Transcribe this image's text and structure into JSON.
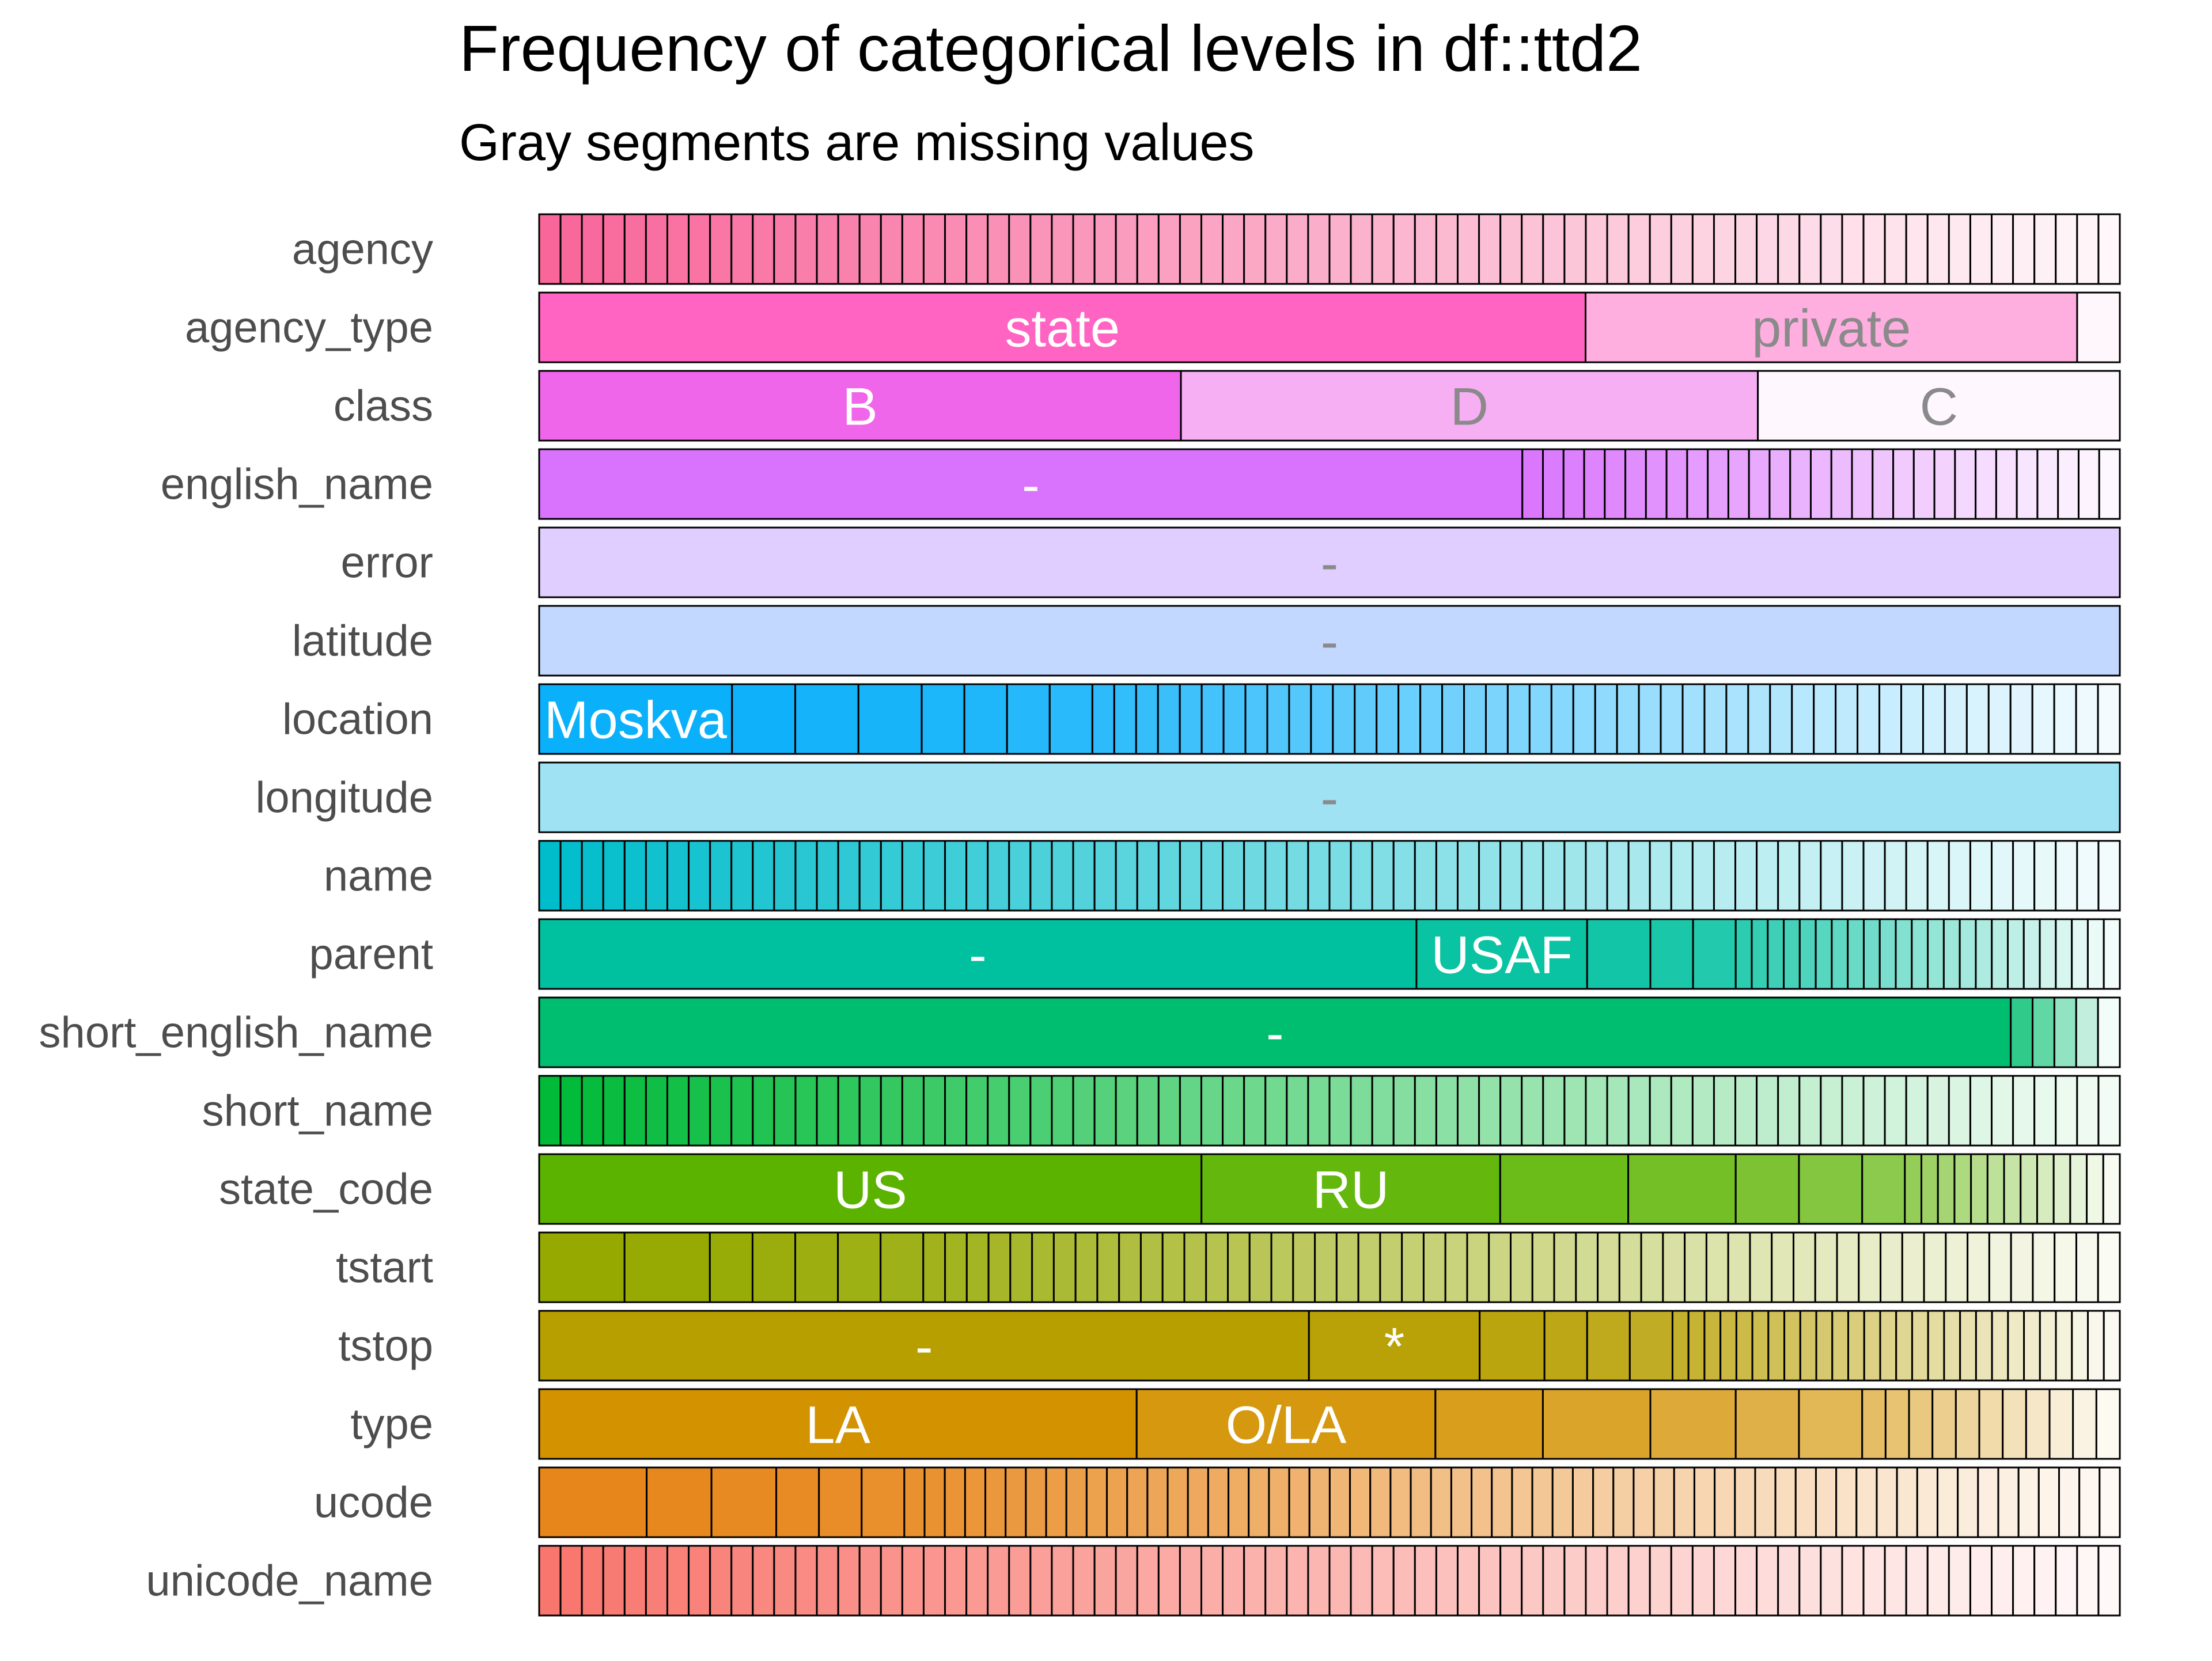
{
  "chart_data": {
    "type": "bar",
    "stacked": true,
    "orientation": "horizontal",
    "title": "Frequency of categorical levels in df::ttd2",
    "subtitle": "Gray segments are missing values",
    "xlabel": "",
    "ylabel": "",
    "xlim": [
      0,
      1
    ],
    "grid": false,
    "legend": "none",
    "rows": [
      {
        "name": "agency",
        "color": "#F8669A",
        "shares": "auto-even-74",
        "labels": []
      },
      {
        "name": "agency_type",
        "color": "#FF64C3",
        "shares": [
          0.662,
          0.311,
          0.027
        ],
        "labels": [
          "state",
          "private",
          ""
        ]
      },
      {
        "name": "class",
        "color": "#F066EA",
        "shares": [
          0.406,
          0.365,
          0.229
        ],
        "labels": [
          "B",
          "D",
          "C"
        ]
      },
      {
        "name": "english_name",
        "color": "#D972FD",
        "shares": "dominant-0.622-then-29",
        "labels": [
          "-"
        ]
      },
      {
        "name": "error",
        "color": "#DFCEFF",
        "shares": [
          1.0
        ],
        "labels": [
          "-"
        ]
      },
      {
        "name": "latitude",
        "color": "#C2D8FF",
        "shares": [
          1.0
        ],
        "labels": [
          "-"
        ]
      },
      {
        "name": "location",
        "color": "#0BB0FA",
        "shares": "decreasing-55",
        "labels": [
          "Moskva"
        ]
      },
      {
        "name": "longitude",
        "color": "#9EE2F4",
        "shares": [
          1.0
        ],
        "labels": [
          "-"
        ]
      },
      {
        "name": "name",
        "color": "#00BDCB",
        "shares": "auto-even-74",
        "labels": []
      },
      {
        "name": "parent",
        "color": "#00C19F",
        "shares": [
          0.555,
          0.108,
          0.04,
          0.027,
          0.027
        ],
        "labels": [
          "-",
          "USAF"
        ],
        "rest": 24
      },
      {
        "name": "short_english_name",
        "color": "#00BE70",
        "shares": [
          0.931
        ],
        "labels": [
          "-"
        ],
        "rest": 5
      },
      {
        "name": "short_name",
        "color": "#00BA38",
        "shares": "auto-even-74",
        "labels": []
      },
      {
        "name": "state_code",
        "color": "#5BB300",
        "shares": [
          0.419,
          0.189,
          0.081,
          0.068,
          0.04,
          0.04,
          0.027
        ],
        "labels": [
          "US",
          "RU"
        ],
        "rest": 13
      },
      {
        "name": "tstart",
        "color": "#95A900",
        "shares": [
          0.054,
          0.054,
          0.027,
          0.027,
          0.027,
          0.027,
          0.027
        ],
        "labels": [],
        "rest": 55
      },
      {
        "name": "tstop",
        "color": "#B79F00",
        "shares": [
          0.487,
          0.108,
          0.041,
          0.027,
          0.027,
          0.027
        ],
        "labels": [
          "-",
          "*"
        ],
        "rest": 28
      },
      {
        "name": "type",
        "color": "#D39200",
        "shares": [
          0.378,
          0.189,
          0.068,
          0.068,
          0.054,
          0.04,
          0.04
        ],
        "labels": [
          "LA",
          "O/LA"
        ],
        "rest": 11
      },
      {
        "name": "ucode",
        "color": "#E7861B",
        "shares": [
          0.068,
          0.041,
          0.041,
          0.027,
          0.027,
          0.027
        ],
        "labels": [],
        "rest": 60
      },
      {
        "name": "unicode_name",
        "color": "#F8766D",
        "shares": "auto-even-74",
        "labels": []
      }
    ]
  }
}
